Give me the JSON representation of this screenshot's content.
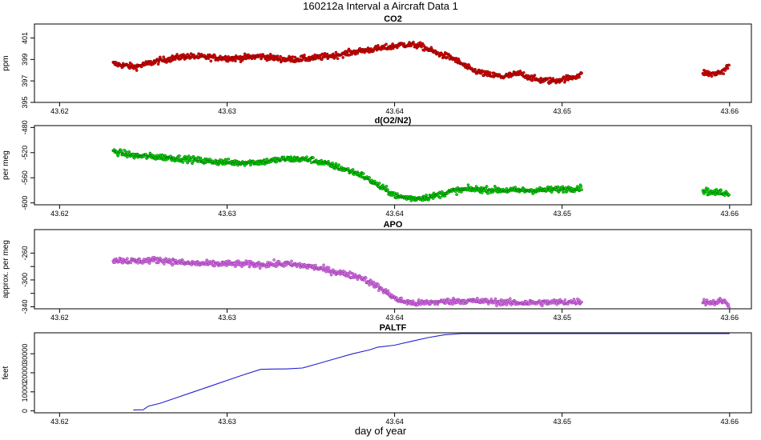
{
  "title": "160212a   Interval a Aircraft Data 1",
  "xlabel": "day of year",
  "chart_data": [
    {
      "type": "scatter",
      "title": "CO2",
      "ylabel": "ppm",
      "color": "#e00000",
      "edge_color": "#7a0000",
      "xlim": [
        43.6185,
        43.6613
      ],
      "ylim": [
        395,
        402.3
      ],
      "yticks": [
        395,
        397,
        399,
        401
      ],
      "xticks": [
        43.62,
        43.63,
        43.64,
        43.65,
        43.66
      ],
      "xtick_labels": [
        "43.62",
        "43.63",
        "43.64",
        "43.65",
        "43.66"
      ],
      "segments": [
        {
          "x": [
            43.6232,
            43.6245,
            43.626,
            43.6275,
            43.629,
            43.6305,
            43.632,
            43.6335,
            43.635,
            43.6365,
            43.638,
            43.6395,
            43.6405,
            43.6415,
            43.6425,
            43.6435,
            43.6445,
            43.6455,
            43.6465,
            43.6475,
            43.6485,
            43.6495,
            43.6505,
            43.6512
          ],
          "y": [
            398.6,
            398.3,
            398.9,
            399.3,
            399.2,
            399.1,
            399.3,
            399.0,
            399.1,
            399.4,
            399.8,
            400.1,
            400.4,
            400.3,
            399.6,
            399.1,
            398.1,
            397.6,
            397.4,
            397.7,
            397.1,
            397.0,
            397.3,
            397.6
          ]
        },
        {
          "x": [
            43.6584,
            43.659,
            43.6596,
            43.66
          ],
          "y": [
            397.8,
            397.6,
            397.9,
            398.5
          ]
        }
      ]
    },
    {
      "type": "scatter",
      "title": "d(O2/N2)",
      "ylabel": "per meg",
      "color": "#00e000",
      "edge_color": "#006000",
      "xlim": [
        43.6185,
        43.6613
      ],
      "ylim": [
        -603,
        -477
      ],
      "yticks": [
        -600,
        -560,
        -520,
        -480
      ],
      "yticks_labeled": [
        -600,
        -560,
        -520,
        -480
      ],
      "xticks": [
        43.62,
        43.63,
        43.64,
        43.65,
        43.66
      ],
      "xtick_labels": [
        "43.62",
        "43.63",
        "43.64",
        "43.65",
        "43.66"
      ],
      "segments": [
        {
          "x": [
            43.6232,
            43.6245,
            43.626,
            43.6275,
            43.629,
            43.6305,
            43.632,
            43.6335,
            43.635,
            43.6365,
            43.638,
            43.6392,
            43.6402,
            43.6412,
            43.6422,
            43.6435,
            43.6445,
            43.6455,
            43.647,
            43.6485,
            43.65,
            43.6512
          ],
          "y": [
            -518,
            -525,
            -527,
            -530,
            -534,
            -536,
            -535,
            -530,
            -531,
            -542,
            -555,
            -575,
            -590,
            -593,
            -590,
            -581,
            -578,
            -579,
            -580,
            -580,
            -578,
            -576
          ]
        },
        {
          "x": [
            43.6584,
            43.659,
            43.6596,
            43.66
          ],
          "y": [
            -580,
            -584,
            -583,
            -586
          ]
        }
      ]
    },
    {
      "type": "scatter",
      "title": "APO",
      "ylabel": "approx. per meg",
      "color": "#e070f0",
      "edge_color": "#8a3a9a",
      "xlim": [
        43.6185,
        43.6613
      ],
      "ylim": [
        -343,
        -225
      ],
      "yticks": [
        -340,
        -320,
        -300,
        -280,
        -260
      ],
      "yticks_labeled": [
        -340,
        -300,
        -260
      ],
      "xticks": [
        43.62,
        43.63,
        43.64,
        43.65,
        43.66
      ],
      "xtick_labels": [
        "43.62",
        "43.63",
        "43.64",
        "43.65",
        "43.66"
      ],
      "segments": [
        {
          "x": [
            43.6232,
            43.6245,
            43.626,
            43.6275,
            43.629,
            43.6305,
            43.632,
            43.6335,
            43.635,
            43.6365,
            43.638,
            43.6392,
            43.6402,
            43.6412,
            43.6425,
            43.644,
            43.6455,
            43.647,
            43.6485,
            43.65,
            43.6512
          ],
          "y": [
            -270,
            -272,
            -270,
            -275,
            -276,
            -276,
            -277,
            -276,
            -280,
            -288,
            -296,
            -313,
            -330,
            -335,
            -333,
            -331,
            -332,
            -334,
            -334,
            -333,
            -332
          ]
        },
        {
          "x": [
            43.6584,
            43.659,
            43.6596,
            43.66
          ],
          "y": [
            -332,
            -334,
            -331,
            -338
          ]
        }
      ]
    },
    {
      "type": "line",
      "title": "PALTF",
      "ylabel": "feet",
      "color": "#2020d0",
      "xlim": [
        43.6185,
        43.6613
      ],
      "ylim": [
        -1000,
        41000
      ],
      "yticks": [
        0,
        10000,
        20000,
        30000
      ],
      "xticks": [
        43.62,
        43.63,
        43.64,
        43.65,
        43.66
      ],
      "xtick_labels": [
        "43.62",
        "43.63",
        "43.64",
        "43.65",
        "43.66"
      ],
      "x": [
        43.6244,
        43.625,
        43.6253,
        43.626,
        43.627,
        43.628,
        43.629,
        43.63,
        43.631,
        43.632,
        43.633,
        43.6335,
        43.6345,
        43.6355,
        43.6365,
        43.6375,
        43.6385,
        43.639,
        43.64,
        43.641,
        43.642,
        43.643,
        43.644,
        43.645,
        43.646,
        43.647,
        43.648,
        43.649,
        43.65,
        43.652,
        43.66
      ],
      "y": [
        500,
        600,
        2500,
        4000,
        7000,
        10000,
        13000,
        16000,
        19000,
        21800,
        22000,
        22000,
        22500,
        25000,
        27500,
        30000,
        32000,
        33500,
        34500,
        36500,
        38500,
        40000,
        41000,
        42500,
        43500,
        44000,
        44800,
        45200,
        45300,
        45300,
        45300
      ]
    }
  ]
}
